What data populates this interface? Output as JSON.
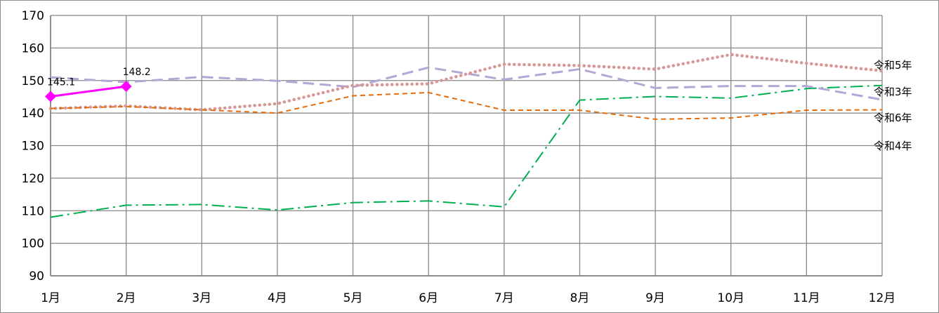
{
  "chart_data": {
    "type": "line",
    "title": "",
    "xlabel": "",
    "ylabel": "",
    "categories": [
      "1月",
      "2月",
      "3月",
      "4月",
      "5月",
      "6月",
      "7月",
      "8月",
      "9月",
      "10月",
      "11月",
      "12月"
    ],
    "ylim": [
      90,
      170
    ],
    "yticks": [
      90,
      100,
      110,
      120,
      130,
      140,
      150,
      160,
      170
    ],
    "grid": true,
    "legend": "none",
    "series": [
      {
        "key": "r3",
        "name": "令和3年",
        "color": "#00b050",
        "style": "dash-dot",
        "values": [
          108.0,
          111.7,
          111.9,
          110.2,
          112.5,
          113.0,
          111.2,
          144.0,
          145.1,
          144.6,
          147.5,
          148.5
        ]
      },
      {
        "key": "r4",
        "name": "令和4年",
        "color": "#b4a7d6",
        "style": "dashed",
        "values": [
          151.0,
          149.5,
          151.1,
          149.9,
          148.0,
          154.0,
          150.3,
          153.5,
          147.7,
          148.3,
          148.3,
          144.1
        ]
      },
      {
        "key": "r5",
        "name": "令和5年",
        "color": "#d99694",
        "style": "dotted",
        "values": [
          141.4,
          142.2,
          141.0,
          142.9,
          148.5,
          149.0,
          155.0,
          154.6,
          153.5,
          158.0,
          155.3,
          153.0
        ]
      },
      {
        "key": "r6",
        "name": "令和6年",
        "color": "#e46c0a",
        "style": "short-dash",
        "values": [
          141.4,
          142.0,
          141.0,
          140.0,
          145.3,
          146.3,
          140.9,
          140.9,
          138.1,
          138.5,
          140.9,
          141.0
        ]
      },
      {
        "key": "r7",
        "name": "",
        "color": "#ff00ff",
        "style": "solid-diamond",
        "values": [
          145.1,
          148.2,
          null,
          null,
          null,
          null,
          null,
          null,
          null,
          null,
          null,
          null
        ],
        "data_labels": [
          "145.1",
          "148.2"
        ]
      }
    ],
    "end_labels": [
      "令和5年",
      "令和3年",
      "令和6年",
      "令和4年"
    ]
  }
}
